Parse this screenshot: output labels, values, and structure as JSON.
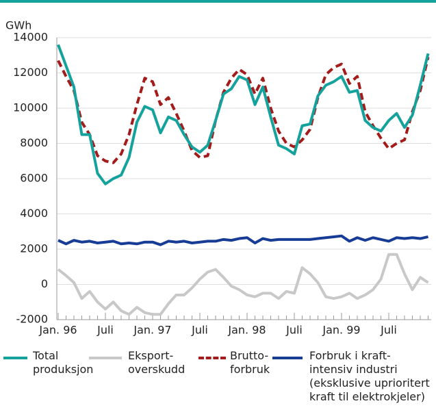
{
  "chart_data": {
    "type": "line",
    "y_label": "GWh",
    "categories": [
      "Jan. 96",
      null,
      null,
      null,
      null,
      null,
      "Juli",
      null,
      null,
      null,
      null,
      null,
      "Jan. 97",
      null,
      null,
      null,
      null,
      null,
      "Juli",
      null,
      null,
      null,
      null,
      null,
      "Jan. 98",
      null,
      null,
      null,
      null,
      null,
      "Juli",
      null,
      null,
      null,
      null,
      null,
      "Jan. 99",
      null,
      null,
      null,
      null,
      null,
      "Juli",
      null,
      null,
      null,
      null,
      null
    ],
    "series": [
      {
        "name": "Total\nproduksjon",
        "color": "#16a29c",
        "style": "solid",
        "values": [
          13600,
          12400,
          11200,
          8500,
          8500,
          6300,
          5700,
          6000,
          6200,
          7200,
          9200,
          10100,
          9900,
          8600,
          9500,
          9300,
          8500,
          7800,
          7500,
          7900,
          9300,
          10800,
          11100,
          11800,
          11600,
          10200,
          11200,
          9500,
          7900,
          7700,
          7400,
          9000,
          9100,
          10700,
          11300,
          11500,
          11800,
          10900,
          11000,
          9300,
          8900,
          8700,
          9300,
          9700,
          8900,
          9600,
          11300,
          13100
        ]
      },
      {
        "name": "Eksport-\noverskudd",
        "color": "#c8c8c8",
        "style": "solid",
        "values": [
          850,
          500,
          100,
          -800,
          -400,
          -1000,
          -1400,
          -1000,
          -1500,
          -1700,
          -1300,
          -1600,
          -1700,
          -1700,
          -1100,
          -600,
          -600,
          -200,
          300,
          700,
          850,
          400,
          -100,
          -300,
          -600,
          -700,
          -500,
          -500,
          -800,
          -400,
          -500,
          950,
          600,
          100,
          -700,
          -800,
          -700,
          -500,
          -800,
          -600,
          -300,
          300,
          1700,
          1700,
          600,
          -300,
          400,
          100
        ]
      },
      {
        "name": "Brutto-\nforbruk",
        "color": "#a31b1b",
        "style": "dashed",
        "values": [
          12700,
          11800,
          11000,
          9200,
          8500,
          7300,
          7000,
          6900,
          7400,
          8500,
          10200,
          11700,
          11500,
          10200,
          10600,
          9700,
          8700,
          7600,
          7200,
          7300,
          9300,
          10900,
          11700,
          12200,
          11900,
          10800,
          11700,
          10000,
          8700,
          8000,
          7800,
          8200,
          8800,
          10600,
          11900,
          12300,
          12500,
          11400,
          11800,
          9800,
          9000,
          8300,
          7700,
          8000,
          8200,
          9800,
          11000,
          12900
        ]
      },
      {
        "name": "Forbruk i kraft-\nintensiv industri\n(eksklusive uprioritert\nkraft til elektrokjeler)",
        "color": "#173c96",
        "style": "solid",
        "values": [
          2500,
          2300,
          2500,
          2400,
          2450,
          2350,
          2400,
          2450,
          2300,
          2350,
          2300,
          2400,
          2400,
          2250,
          2450,
          2400,
          2450,
          2350,
          2400,
          2450,
          2450,
          2550,
          2500,
          2600,
          2650,
          2350,
          2600,
          2500,
          2550,
          2550,
          2550,
          2550,
          2550,
          2600,
          2650,
          2700,
          2750,
          2450,
          2650,
          2500,
          2650,
          2550,
          2450,
          2650,
          2600,
          2650,
          2600,
          2700
        ]
      }
    ],
    "ylim": [
      -2000,
      14000
    ],
    "yticks": [
      -2000,
      0,
      2000,
      4000,
      6000,
      8000,
      10000,
      12000,
      14000
    ],
    "grid": true
  }
}
